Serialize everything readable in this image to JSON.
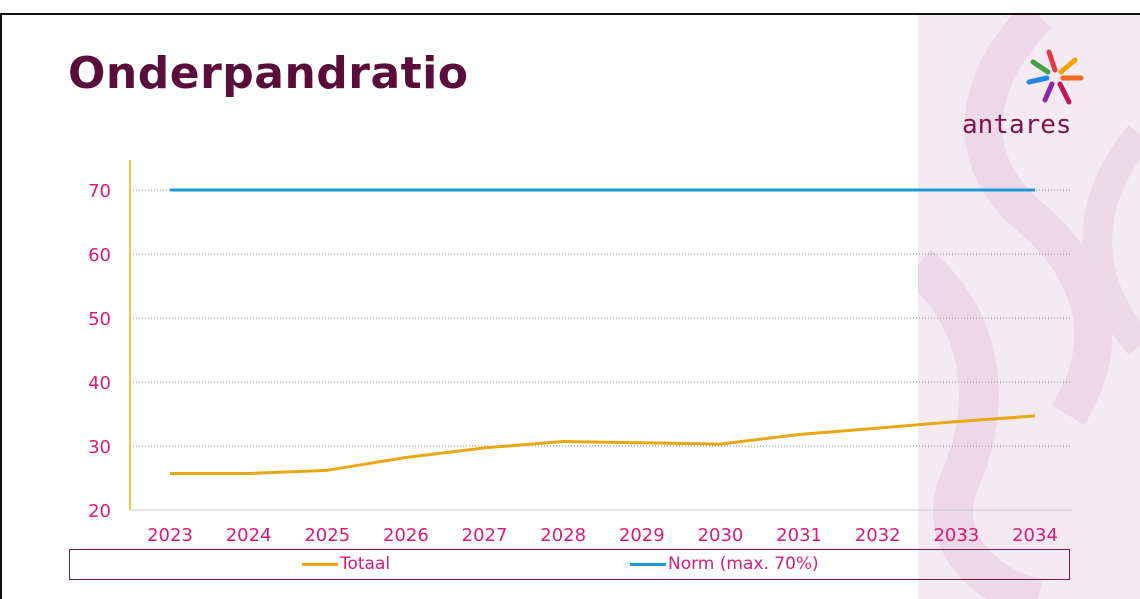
{
  "slide": {
    "title": "Onderpandratio",
    "logo_text": "antares"
  },
  "colors": {
    "title": "#5a0d3a",
    "tick": "#d81b7a",
    "axis": "#e6b800",
    "totaal": "#e8a714",
    "norm": "#1a9ad6"
  },
  "chart_data": {
    "type": "line",
    "categories": [
      "2023",
      "2024",
      "2025",
      "2026",
      "2027",
      "2028",
      "2029",
      "2030",
      "2031",
      "2032",
      "2033",
      "2034"
    ],
    "series": [
      {
        "name": "Totaal",
        "values": [
          25.7,
          25.7,
          26.2,
          28.2,
          29.7,
          30.7,
          30.5,
          30.3,
          31.8,
          32.8,
          33.8,
          34.7
        ]
      },
      {
        "name": "Norm (max. 70%)",
        "values": [
          70,
          70,
          70,
          70,
          70,
          70,
          70,
          70,
          70,
          70,
          70,
          70
        ]
      }
    ],
    "yticks": [
      "20",
      "30",
      "40",
      "50",
      "60",
      "70"
    ],
    "ylim": [
      20,
      75
    ],
    "grid": "horizontal dotted",
    "legend_position": "bottom"
  }
}
